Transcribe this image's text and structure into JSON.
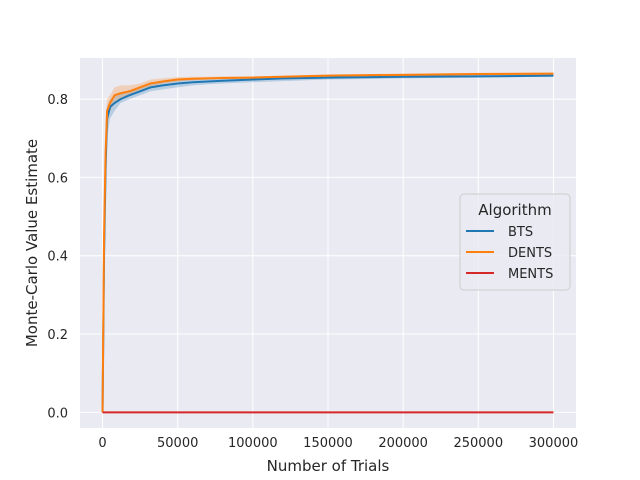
{
  "chart_data": {
    "type": "line",
    "xlabel": "Number of Trials",
    "ylabel": "Monte-Carlo Value Estimate",
    "xlim": [
      -15000,
      315000
    ],
    "ylim": [
      -0.04,
      0.905
    ],
    "xticks": [
      0,
      50000,
      100000,
      150000,
      200000,
      250000,
      300000
    ],
    "xtick_labels": [
      "0",
      "50000",
      "100000",
      "150000",
      "200000",
      "250000",
      "300000"
    ],
    "yticks": [
      0.0,
      0.2,
      0.4,
      0.6,
      0.8
    ],
    "ytick_labels": [
      "0.0",
      "0.2",
      "0.4",
      "0.6",
      "0.8"
    ],
    "grid": true,
    "legend": {
      "title": "Algorithm",
      "placement": "center-right",
      "entries": [
        "BTS",
        "DENTS",
        "MENTS"
      ]
    },
    "series": [
      {
        "name": "BTS",
        "color": "#1f77b4",
        "x": [
          0,
          1000,
          2000,
          3000,
          5000,
          8000,
          12000,
          18000,
          25000,
          32000,
          40000,
          50000,
          60000,
          70000,
          80000,
          100000,
          120000,
          150000,
          200000,
          250000,
          300000
        ],
        "y": [
          0.0,
          0.4,
          0.62,
          0.75,
          0.78,
          0.79,
          0.8,
          0.81,
          0.82,
          0.83,
          0.835,
          0.84,
          0.843,
          0.845,
          0.847,
          0.85,
          0.853,
          0.855,
          0.857,
          0.858,
          0.86
        ],
        "lower": [
          0.0,
          0.3,
          0.55,
          0.7,
          0.75,
          0.77,
          0.79,
          0.8,
          0.81,
          0.82,
          0.825,
          0.83,
          0.835,
          0.838,
          0.84,
          0.843,
          0.846,
          0.85,
          0.853,
          0.855,
          0.857
        ],
        "upper": [
          0.0,
          0.5,
          0.68,
          0.78,
          0.8,
          0.81,
          0.815,
          0.82,
          0.83,
          0.84,
          0.845,
          0.85,
          0.852,
          0.853,
          0.854,
          0.856,
          0.859,
          0.86,
          0.862,
          0.863,
          0.864
        ]
      },
      {
        "name": "DENTS",
        "color": "#ff7f0e",
        "x": [
          0,
          1000,
          2000,
          3000,
          5000,
          8000,
          12000,
          18000,
          25000,
          32000,
          40000,
          50000,
          60000,
          70000,
          80000,
          100000,
          120000,
          150000,
          200000,
          250000,
          300000
        ],
        "y": [
          0.0,
          0.45,
          0.66,
          0.77,
          0.79,
          0.81,
          0.815,
          0.82,
          0.83,
          0.84,
          0.845,
          0.85,
          0.852,
          0.853,
          0.854,
          0.855,
          0.857,
          0.86,
          0.862,
          0.864,
          0.865
        ],
        "lower": [
          0.0,
          0.35,
          0.6,
          0.73,
          0.77,
          0.79,
          0.8,
          0.81,
          0.82,
          0.83,
          0.84,
          0.845,
          0.848,
          0.85,
          0.851,
          0.853,
          0.855,
          0.857,
          0.859,
          0.861,
          0.862
        ],
        "upper": [
          0.0,
          0.55,
          0.72,
          0.8,
          0.81,
          0.83,
          0.835,
          0.835,
          0.84,
          0.85,
          0.853,
          0.856,
          0.857,
          0.857,
          0.858,
          0.858,
          0.86,
          0.863,
          0.865,
          0.867,
          0.868
        ]
      },
      {
        "name": "MENTS",
        "color": "#d62728",
        "x": [
          0,
          300000
        ],
        "y": [
          0.0,
          0.0
        ],
        "lower": [
          0.0,
          0.0
        ],
        "upper": [
          0.0,
          0.0
        ]
      }
    ]
  }
}
